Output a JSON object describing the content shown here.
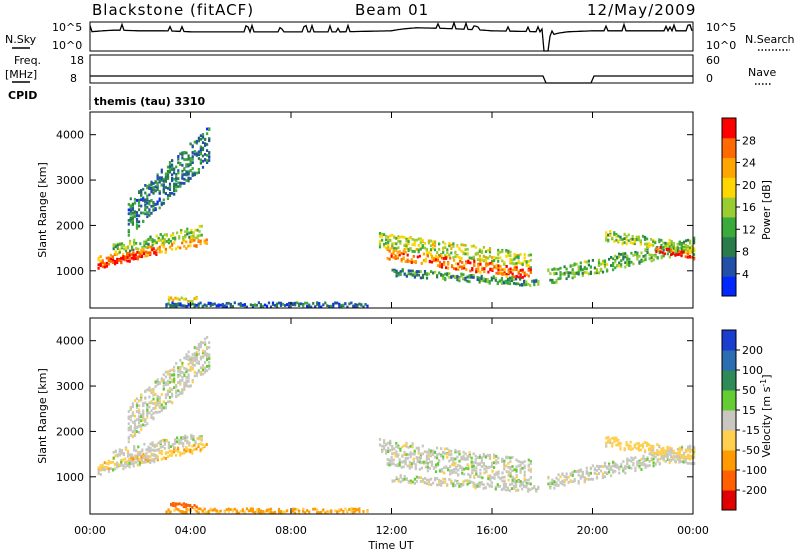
{
  "header": {
    "radar_title": "Blackstone (fitACF)",
    "beam_title": "Beam 01",
    "date_title": "12/May/2009"
  },
  "status_panel": {
    "nsky_label": "N.Sky",
    "freq_label_1": "Freq.",
    "freq_label_2": "[MHz]",
    "cpid_label": "CPID",
    "nsearch_label": "N.Search",
    "nave_label": "Nave",
    "cpid_text": "themis (tau) 3310",
    "noise_ticks_left": [
      "10^5",
      "10^0"
    ],
    "noise_ticks_right": [
      "10^5",
      "10^0"
    ],
    "freq_ticks": [
      "18",
      "8"
    ],
    "nave_ticks": [
      "60",
      "0"
    ]
  },
  "power_colorbar": {
    "label": "Power [dB]",
    "ticks": [
      "28",
      "24",
      "20",
      "16",
      "12",
      "8",
      "4"
    ],
    "colors": [
      "#0028ff",
      "#224fa8",
      "#2a7d4a",
      "#3aaa3a",
      "#9acd32",
      "#ffd700",
      "#ffa500",
      "#ff6a00",
      "#ff0000"
    ]
  },
  "velocity_colorbar": {
    "label": "Velocity",
    "unit": "[m s",
    "unit_exp": "-1",
    "unit_close": "]",
    "ticks": [
      "200",
      "100",
      "50",
      "15",
      "-15",
      "-50",
      "-100",
      "-200"
    ],
    "colors": [
      "#1a3ccf",
      "#2a6db0",
      "#2e8b57",
      "#66cc33",
      "#c8c8c0",
      "#ffd050",
      "#ff9a00",
      "#ff6000",
      "#e00000"
    ]
  },
  "x_axis": {
    "label": "Time UT",
    "ticks": [
      "00:00",
      "04:00",
      "08:00",
      "12:00",
      "16:00",
      "20:00",
      "00:00"
    ]
  },
  "y_axis": {
    "label": "Slant Range [km]",
    "ticks": [
      "1000",
      "2000",
      "3000",
      "4000"
    ]
  },
  "chart_data": [
    {
      "type": "line",
      "panel": "noise (N.Sky / N.Search)",
      "x": [
        "00:00",
        "01:00",
        "02:00",
        "03:00",
        "04:00",
        "06:00",
        "08:00",
        "10:00",
        "12:00",
        "13:00",
        "14:00",
        "16:00",
        "18:00",
        "18:10",
        "19:00",
        "20:00",
        "22:00",
        "24:00"
      ],
      "y": [
        2000,
        4000,
        3000,
        3000,
        2000,
        2000,
        2000,
        2000,
        3000,
        10000,
        8000,
        3000,
        2000,
        1,
        2000,
        3000,
        3000,
        3000
      ],
      "yscale": "log",
      "ylim": [
        1,
        100000
      ]
    },
    {
      "type": "line",
      "panel": "Freq. [MHz] / Nave",
      "x": [
        "00:00",
        "04:00",
        "08:00",
        "12:00",
        "16:00",
        "18:00",
        "18:10",
        "20:00",
        "24:00"
      ],
      "y": [
        10.5,
        10.5,
        10.5,
        10.5,
        10.5,
        10.5,
        8,
        10.5,
        10.5
      ],
      "ylim": [
        8,
        18
      ]
    },
    {
      "type": "heatmap",
      "title": "Power [dB]",
      "xlabel": "Time UT",
      "ylabel": "Slant Range [km]",
      "xlim": [
        0,
        24
      ],
      "ylim": [
        180,
        4500
      ],
      "zlim": [
        0,
        30
      ],
      "bands": [
        {
          "t": [
            0.3,
            4.6
          ],
          "r_start": 1250,
          "r_end": 1700,
          "dr": 120,
          "power": 22
        },
        {
          "t": [
            0.3,
            2.6
          ],
          "r_start": 1150,
          "r_end": 1450,
          "dr": 100,
          "power": 28
        },
        {
          "t": [
            0.9,
            4.4
          ],
          "r_start": 1500,
          "r_end": 1900,
          "dr": 150,
          "power": 14
        },
        {
          "t": [
            1.5,
            4.7
          ],
          "r_start": 2200,
          "r_end": 3800,
          "dr": 500,
          "power": 8
        },
        {
          "t": [
            11.5,
            17.5
          ],
          "r_start": 1700,
          "r_end": 1250,
          "dr": 200,
          "power": 16
        },
        {
          "t": [
            11.8,
            17.5
          ],
          "r_start": 1400,
          "r_end": 950,
          "dr": 150,
          "power": 24
        },
        {
          "t": [
            12.0,
            17.8
          ],
          "r_start": 1000,
          "r_end": 750,
          "dr": 100,
          "power": 10
        },
        {
          "t": [
            18.2,
            24.0
          ],
          "r_start": 900,
          "r_end": 1600,
          "dr": 200,
          "power": 12
        },
        {
          "t": [
            20.5,
            24.0
          ],
          "r_start": 1800,
          "r_end": 1500,
          "dr": 150,
          "power": 14
        },
        {
          "t": [
            22.5,
            24.0
          ],
          "r_start": 1500,
          "r_end": 1350,
          "dr": 80,
          "power": 28
        },
        {
          "t": [
            3.0,
            11.0
          ],
          "r_start": 280,
          "r_end": 280,
          "dr": 60,
          "power": 6
        },
        {
          "t": [
            3.1,
            4.2
          ],
          "r_start": 400,
          "r_end": 400,
          "dr": 60,
          "power": 18
        }
      ]
    },
    {
      "type": "heatmap",
      "title": "Velocity [m s-1]",
      "xlabel": "Time UT",
      "ylabel": "Slant Range [km]",
      "xlim": [
        0,
        24
      ],
      "ylim": [
        180,
        4500
      ],
      "zlim": [
        -200,
        200
      ],
      "bands": [
        {
          "t": [
            0.3,
            4.6
          ],
          "r_start": 1250,
          "r_end": 1700,
          "dr": 120,
          "velocity": -40
        },
        {
          "t": [
            0.3,
            2.6
          ],
          "r_start": 1150,
          "r_end": 1450,
          "dr": 100,
          "velocity": 0
        },
        {
          "t": [
            0.9,
            4.4
          ],
          "r_start": 1500,
          "r_end": 1900,
          "dr": 150,
          "velocity": 0
        },
        {
          "t": [
            1.5,
            4.7
          ],
          "r_start": 2200,
          "r_end": 3800,
          "dr": 500,
          "velocity": 0
        },
        {
          "t": [
            11.5,
            17.5
          ],
          "r_start": 1700,
          "r_end": 1250,
          "dr": 200,
          "velocity": 0
        },
        {
          "t": [
            11.8,
            17.5
          ],
          "r_start": 1400,
          "r_end": 950,
          "dr": 150,
          "velocity": 0
        },
        {
          "t": [
            12.0,
            17.8
          ],
          "r_start": 1000,
          "r_end": 750,
          "dr": 100,
          "velocity": 0
        },
        {
          "t": [
            18.2,
            24.0
          ],
          "r_start": 900,
          "r_end": 1600,
          "dr": 200,
          "velocity": 0
        },
        {
          "t": [
            20.5,
            24.0
          ],
          "r_start": 1800,
          "r_end": 1500,
          "dr": 150,
          "velocity": -30
        },
        {
          "t": [
            22.5,
            24.0
          ],
          "r_start": 1500,
          "r_end": 1350,
          "dr": 80,
          "velocity": 0
        },
        {
          "t": [
            3.0,
            11.0
          ],
          "r_start": 280,
          "r_end": 280,
          "dr": 60,
          "velocity": -60
        },
        {
          "t": [
            3.1,
            4.2
          ],
          "r_start": 400,
          "r_end": 400,
          "dr": 60,
          "velocity": -120
        }
      ]
    }
  ]
}
